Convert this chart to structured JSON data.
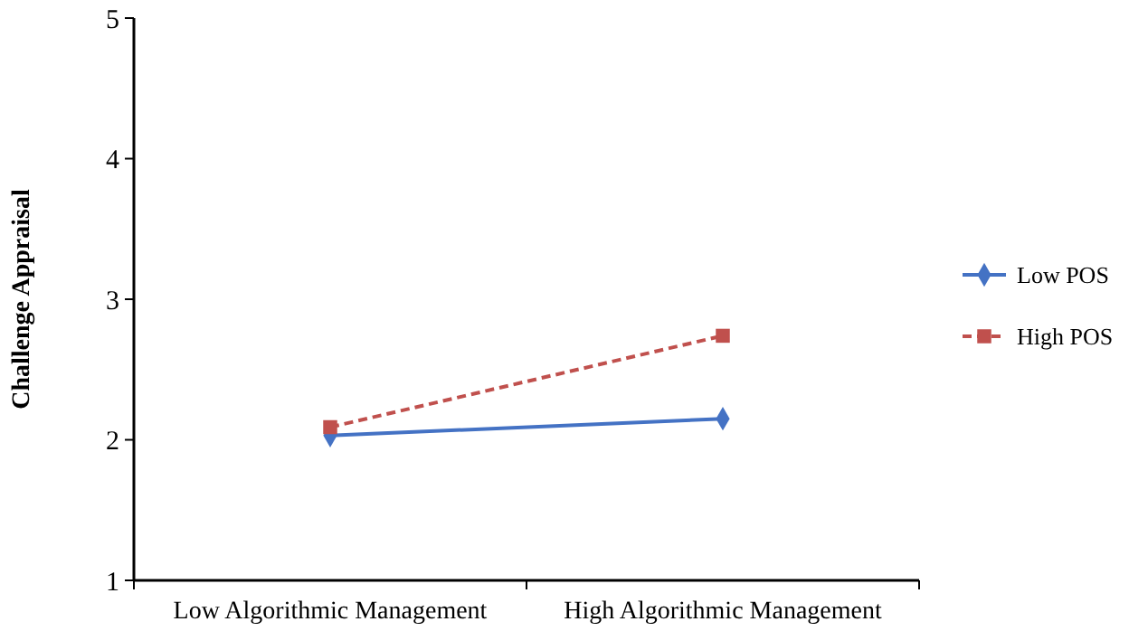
{
  "chart_data": {
    "type": "line",
    "ylabel": "Challenge Appraisal",
    "categories": [
      "Low Algorithmic Management",
      "High Algorithmic Management"
    ],
    "series": [
      {
        "name": "Low POS",
        "color": "#4472c4",
        "values": [
          2.03,
          2.15
        ],
        "marker": "diamond",
        "line_style": "solid"
      },
      {
        "name": "High POS",
        "color": "#c0504d",
        "values": [
          2.09,
          2.74
        ],
        "marker": "square",
        "line_style": "dashed"
      }
    ],
    "ylim": [
      1,
      5
    ],
    "yticks": [
      1,
      2,
      3,
      4,
      5
    ],
    "grid": false,
    "legend": "right"
  }
}
